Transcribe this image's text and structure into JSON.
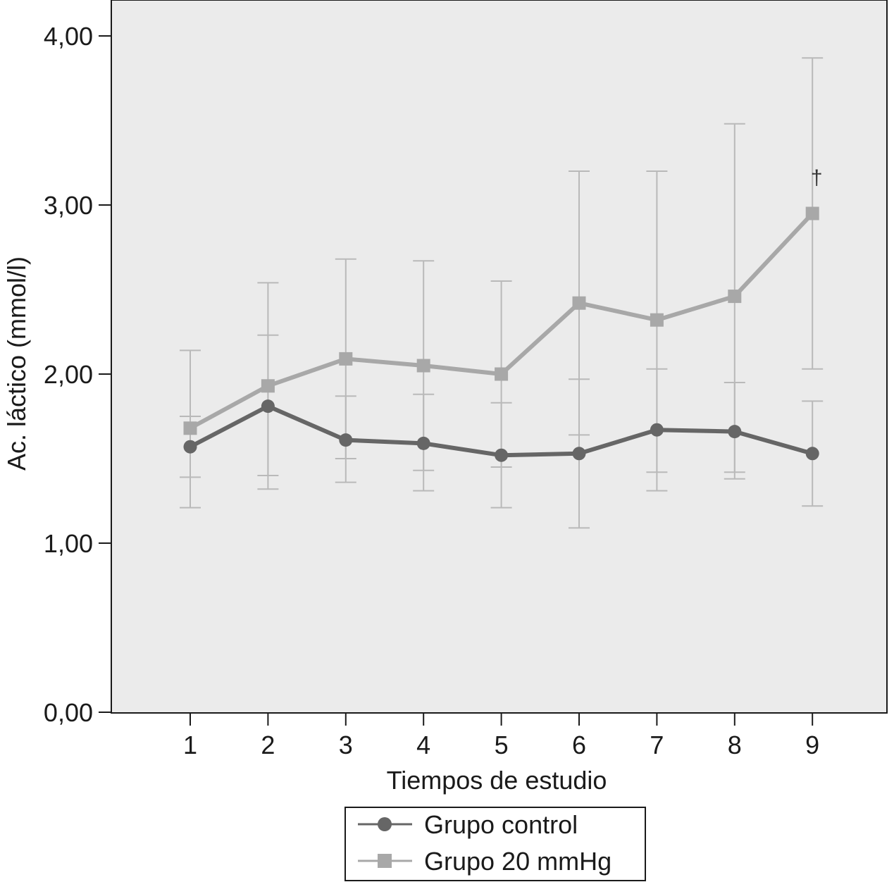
{
  "chart_data": {
    "type": "line",
    "x": [
      1,
      2,
      3,
      4,
      5,
      6,
      7,
      8,
      9
    ],
    "xlabel": "Tiempos de estudio",
    "ylabel": "Ac. láctico (mmol/l)",
    "ylim": [
      0,
      4
    ],
    "yticks": [
      "0,00",
      "1,00",
      "2,00",
      "3,00",
      "4,00"
    ],
    "yticks_values": [
      0,
      1,
      2,
      3,
      4
    ],
    "xticks": [
      "1",
      "2",
      "3",
      "4",
      "5",
      "6",
      "7",
      "8",
      "9"
    ],
    "grid": false,
    "legend_position": "bottom",
    "background_color": "#ebebeb",
    "series": [
      {
        "name": "Grupo control",
        "marker": "circle",
        "color": "#666666",
        "values": [
          1.57,
          1.81,
          1.61,
          1.59,
          1.52,
          1.53,
          1.67,
          1.66,
          1.53
        ],
        "error_low": [
          1.39,
          1.4,
          1.36,
          1.31,
          1.21,
          1.09,
          1.31,
          1.38,
          1.22
        ],
        "error_high": [
          1.75,
          2.23,
          1.87,
          1.88,
          1.83,
          1.97,
          2.03,
          1.95,
          1.84
        ]
      },
      {
        "name": "Grupo 20 mmHg",
        "marker": "square",
        "color": "#a8a8a8",
        "values": [
          1.68,
          1.93,
          2.09,
          2.05,
          2.0,
          2.42,
          2.32,
          2.46,
          2.95
        ],
        "error_low": [
          1.21,
          1.32,
          1.5,
          1.43,
          1.45,
          1.64,
          1.42,
          1.42,
          2.03
        ],
        "error_high": [
          2.14,
          2.54,
          2.68,
          2.67,
          2.55,
          3.2,
          3.2,
          3.48,
          3.87
        ]
      }
    ],
    "annotations": [
      {
        "text": "†",
        "x": 9,
        "y": 3.12
      }
    ]
  }
}
